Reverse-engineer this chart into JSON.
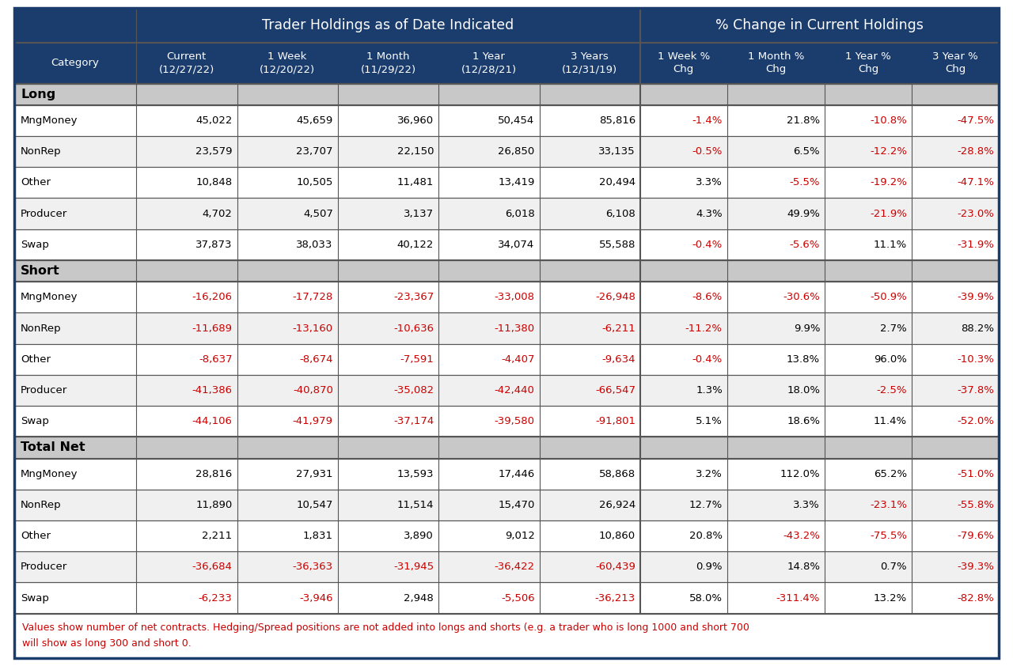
{
  "title1": "Trader Holdings as of Date Indicated",
  "title2": "% Change in Current Holdings",
  "col_headers": [
    "Category",
    "Current\n(12/27/22)",
    "1 Week\n(12/20/22)",
    "1 Month\n(11/29/22)",
    "1 Year\n(12/28/21)",
    "3 Years\n(12/31/19)",
    "1 Week %\nChg",
    "1 Month %\nChg",
    "1 Year %\nChg",
    "3 Year %\nChg"
  ],
  "rows": [
    {
      "section": "Long",
      "category": "MngMoney",
      "vals": [
        "45,022",
        "45,659",
        "36,960",
        "50,454",
        "85,816"
      ],
      "pcts": [
        "-1.4%",
        "21.8%",
        "-10.8%",
        "-47.5%"
      ]
    },
    {
      "section": "Long",
      "category": "NonRep",
      "vals": [
        "23,579",
        "23,707",
        "22,150",
        "26,850",
        "33,135"
      ],
      "pcts": [
        "-0.5%",
        "6.5%",
        "-12.2%",
        "-28.8%"
      ]
    },
    {
      "section": "Long",
      "category": "Other",
      "vals": [
        "10,848",
        "10,505",
        "11,481",
        "13,419",
        "20,494"
      ],
      "pcts": [
        "3.3%",
        "-5.5%",
        "-19.2%",
        "-47.1%"
      ]
    },
    {
      "section": "Long",
      "category": "Producer",
      "vals": [
        "4,702",
        "4,507",
        "3,137",
        "6,018",
        "6,108"
      ],
      "pcts": [
        "4.3%",
        "49.9%",
        "-21.9%",
        "-23.0%"
      ]
    },
    {
      "section": "Long",
      "category": "Swap",
      "vals": [
        "37,873",
        "38,033",
        "40,122",
        "34,074",
        "55,588"
      ],
      "pcts": [
        "-0.4%",
        "-5.6%",
        "11.1%",
        "-31.9%"
      ]
    },
    {
      "section": "Short",
      "category": "MngMoney",
      "vals": [
        "-16,206",
        "-17,728",
        "-23,367",
        "-33,008",
        "-26,948"
      ],
      "pcts": [
        "-8.6%",
        "-30.6%",
        "-50.9%",
        "-39.9%"
      ]
    },
    {
      "section": "Short",
      "category": "NonRep",
      "vals": [
        "-11,689",
        "-13,160",
        "-10,636",
        "-11,380",
        "-6,211"
      ],
      "pcts": [
        "-11.2%",
        "9.9%",
        "2.7%",
        "88.2%"
      ]
    },
    {
      "section": "Short",
      "category": "Other",
      "vals": [
        "-8,637",
        "-8,674",
        "-7,591",
        "-4,407",
        "-9,634"
      ],
      "pcts": [
        "-0.4%",
        "13.8%",
        "96.0%",
        "-10.3%"
      ]
    },
    {
      "section": "Short",
      "category": "Producer",
      "vals": [
        "-41,386",
        "-40,870",
        "-35,082",
        "-42,440",
        "-66,547"
      ],
      "pcts": [
        "1.3%",
        "18.0%",
        "-2.5%",
        "-37.8%"
      ]
    },
    {
      "section": "Short",
      "category": "Swap",
      "vals": [
        "-44,106",
        "-41,979",
        "-37,174",
        "-39,580",
        "-91,801"
      ],
      "pcts": [
        "5.1%",
        "18.6%",
        "11.4%",
        "-52.0%"
      ]
    },
    {
      "section": "Total Net",
      "category": "MngMoney",
      "vals": [
        "28,816",
        "27,931",
        "13,593",
        "17,446",
        "58,868"
      ],
      "pcts": [
        "3.2%",
        "112.0%",
        "65.2%",
        "-51.0%"
      ]
    },
    {
      "section": "Total Net",
      "category": "NonRep",
      "vals": [
        "11,890",
        "10,547",
        "11,514",
        "15,470",
        "26,924"
      ],
      "pcts": [
        "12.7%",
        "3.3%",
        "-23.1%",
        "-55.8%"
      ]
    },
    {
      "section": "Total Net",
      "category": "Other",
      "vals": [
        "2,211",
        "1,831",
        "3,890",
        "9,012",
        "10,860"
      ],
      "pcts": [
        "20.8%",
        "-43.2%",
        "-75.5%",
        "-79.6%"
      ]
    },
    {
      "section": "Total Net",
      "category": "Producer",
      "vals": [
        "-36,684",
        "-36,363",
        "-31,945",
        "-36,422",
        "-60,439"
      ],
      "pcts": [
        "0.9%",
        "14.8%",
        "0.7%",
        "-39.3%"
      ]
    },
    {
      "section": "Total Net",
      "category": "Swap",
      "vals": [
        "-6,233",
        "-3,946",
        "2,948",
        "-5,506",
        "-36,213"
      ],
      "pcts": [
        "58.0%",
        "-311.4%",
        "13.2%",
        "-82.8%"
      ]
    }
  ],
  "footnote_line1": "Values show number of net contracts. Hedging/Spread positions are not added into longs and shorts (e.g. a trader who is long 1000 and short 700",
  "footnote_line2": "will show as long 300 and short 0.",
  "header_bg": "#1b3d6e",
  "header_text": "#ffffff",
  "section_bg": "#c8c8c8",
  "red_color": "#cc0000",
  "black_color": "#000000",
  "border_dark": "#1b3d6e",
  "border_mid": "#666666",
  "border_light": "#999999"
}
